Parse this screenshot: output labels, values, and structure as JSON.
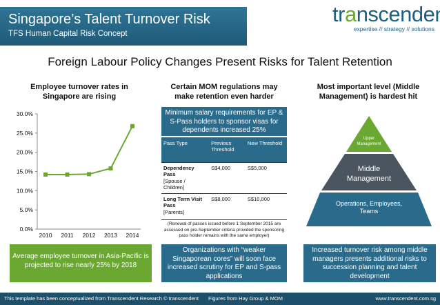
{
  "header": {
    "title": "Singapore’s Talent Turnover Risk",
    "subtitle": "TFS Human Capital Risk Concept"
  },
  "logo": {
    "word_start": "tr",
    "word_accent": "a",
    "word_end": "nscendent",
    "tagline": "expertise // strategy // solutions"
  },
  "headline": "Foreign Labour Policy Changes Present Risks for Talent Retention",
  "col1": {
    "heading": [
      "Employee turnover rates in",
      "Singapore are rising"
    ],
    "summary": "Average employee turnover in Asia-Pacific is projected to rise nearly 25% by 2018"
  },
  "col2": {
    "heading": [
      "Certain MOM regulations may",
      "make retention even harder"
    ],
    "info": "Minimum salary requirements for EP & S-Pass holders to sponsor visas for dependents increased 25%",
    "table": {
      "headers": [
        "Pass Type",
        "Previous Threshold",
        "New Threshold"
      ],
      "rows": [
        {
          "type": "Dependency Pass",
          "detail": "[Spouse / Children]",
          "prev": "S$4,000",
          "new": "S$5,000"
        },
        {
          "type": "Long Term Visit Pass",
          "detail": "[Parents]",
          "prev": "S$8,000",
          "new": "S$10,000"
        }
      ]
    },
    "note": "(Renewal of passes issued before 1 September 2015 are assessed on pre-September criteria provided the sponsoring pass holder remains with the same employer)",
    "summary": "Organizations with “weaker Singaporean cores” will soon face increased scrutiny for EP and S-pass applications"
  },
  "col3": {
    "heading": [
      "Most important level (Middle",
      "Management) is hardest hit"
    ],
    "pyramid": {
      "top": "Upper Management",
      "middle": "Middle Management",
      "bottom": "Operations, Employees, Teams"
    },
    "summary": "Increased turnover risk among middle managers presents additional risks to succession planning and talent development"
  },
  "footer": {
    "left": "This template has been conceptualized from Transcendent Research © transcendent",
    "middle": "Figures from Hay Group & MOM",
    "right": "www.transcendent.com.sg"
  },
  "colors": {
    "primary_blue": "#2a6b8c",
    "accent_green": "#6aa832",
    "pyramid_dark": "#4b5560"
  },
  "chart_data": {
    "type": "line",
    "categories": [
      "2010",
      "2011",
      "2012",
      "2013",
      "2014"
    ],
    "series": [
      {
        "values": [
          14.2,
          14.2,
          14.3,
          15.8,
          26.8
        ]
      }
    ],
    "yticks": [
      "0.0%",
      "5.0%",
      "10.0%",
      "15.0%",
      "20.0%",
      "25.0%",
      "30.0%"
    ],
    "ylim": [
      0,
      30
    ],
    "color": "#6aa832",
    "grid": false
  }
}
